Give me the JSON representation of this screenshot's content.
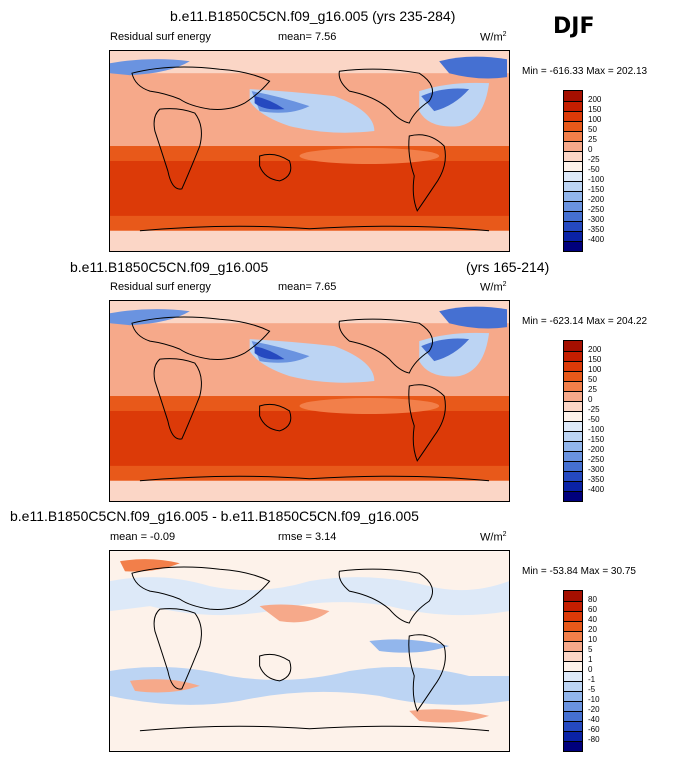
{
  "season": "DJF",
  "panels": [
    {
      "title": "b.e11.B1850C5CN.f09_g16.005 (yrs 235-284)",
      "title_right": "",
      "left_label": "Residual surf energy",
      "stat1": "mean=   7.56",
      "stat2": "",
      "units": "W/m",
      "units_sup": "2",
      "minmax": "Min = -616.33 Max = 202.13",
      "levels": [
        "200",
        "150",
        "100",
        "50",
        "25",
        "0",
        "-25",
        "-50",
        "-100",
        "-150",
        "-200",
        "-250",
        "-300",
        "-350",
        "-400"
      ],
      "colors": [
        "#a50f00",
        "#c41e00",
        "#dc3a08",
        "#e8591a",
        "#f27f4a",
        "#f6a98a",
        "#fbd6c6",
        "#fdf2ea",
        "#dde9f8",
        "#bcd4f3",
        "#92b6ec",
        "#6a93e0",
        "#4570d2",
        "#2549c0",
        "#0a22a6",
        "#00007c"
      ]
    },
    {
      "title": "b.e11.B1850C5CN.f09_g16.005",
      "title_right": "(yrs 165-214)",
      "left_label": "Residual surf energy",
      "stat1": "mean=   7.65",
      "stat2": "",
      "units": "W/m",
      "units_sup": "2",
      "minmax": "Min = -623.14 Max = 204.22",
      "levels": [
        "200",
        "150",
        "100",
        "50",
        "25",
        "0",
        "-25",
        "-50",
        "-100",
        "-150",
        "-200",
        "-250",
        "-300",
        "-350",
        "-400"
      ],
      "colors": [
        "#a50f00",
        "#c41e00",
        "#dc3a08",
        "#e8591a",
        "#f27f4a",
        "#f6a98a",
        "#fbd6c6",
        "#fdf2ea",
        "#dde9f8",
        "#bcd4f3",
        "#92b6ec",
        "#6a93e0",
        "#4570d2",
        "#2549c0",
        "#0a22a6",
        "#00007c"
      ]
    },
    {
      "title": "b.e11.B1850C5CN.f09_g16.005 - b.e11.B1850C5CN.f09_g16.005",
      "title_right": "",
      "left_label": "",
      "stat1": "mean =  -0.09",
      "stat2": "rmse =   3.14",
      "units": "W/m",
      "units_sup": "2",
      "minmax": "Min = -53.84 Max = 30.75",
      "levels": [
        "80",
        "60",
        "40",
        "20",
        "10",
        "5",
        "1",
        "0",
        "-1",
        "-5",
        "-10",
        "-20",
        "-40",
        "-60",
        "-80"
      ],
      "colors": [
        "#a50f00",
        "#c41e00",
        "#dc3a08",
        "#e8591a",
        "#f27f4a",
        "#f6a98a",
        "#fbd6c6",
        "#fdf2ea",
        "#dde9f8",
        "#bcd4f3",
        "#92b6ec",
        "#6a93e0",
        "#4570d2",
        "#2549c0",
        "#0a22a6",
        "#00007c"
      ]
    }
  ]
}
